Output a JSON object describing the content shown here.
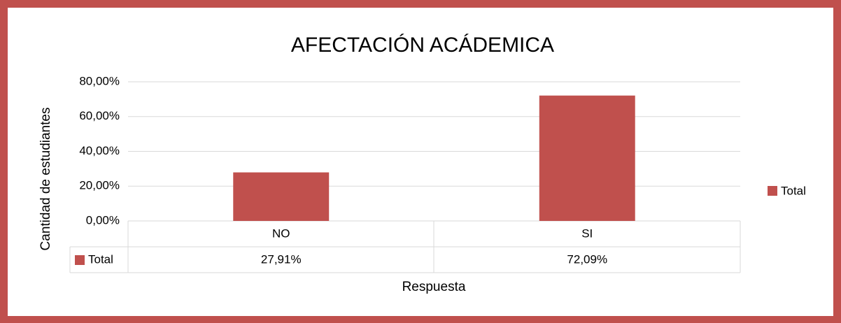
{
  "chart_data": {
    "type": "bar",
    "title": "AFECTACIÓN ACÁDEMICA",
    "x_label": "Respuesta",
    "y_label": "Cantidad de estudiantes",
    "categories": [
      "NO",
      "SI"
    ],
    "series": [
      {
        "name": "Total",
        "color": "#c0504d",
        "values": [
          27.91,
          72.09
        ],
        "value_labels": [
          "27,91%",
          "72,09%"
        ]
      }
    ],
    "ylim": [
      0,
      80
    ],
    "yticks": [
      {
        "value": 0,
        "label": "0,00%"
      },
      {
        "value": 20,
        "label": "20,00%"
      },
      {
        "value": 40,
        "label": "40,00%"
      },
      {
        "value": 60,
        "label": "60,00%"
      },
      {
        "value": 80,
        "label": "80,00%"
      }
    ],
    "grid": true,
    "legend": "right",
    "data_table": true
  }
}
